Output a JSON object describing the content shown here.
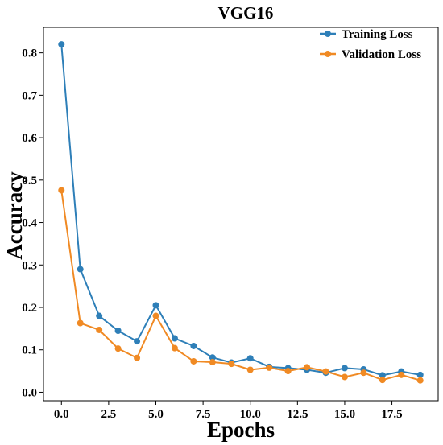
{
  "chart_data": {
    "type": "line",
    "title": "VGG16",
    "xlabel": "Epochs",
    "ylabel": "Accuracy",
    "xlim": [
      -0.95,
      19.95
    ],
    "ylim": [
      -0.02,
      0.86
    ],
    "xticks": [
      0,
      2.5,
      5,
      7.5,
      10,
      12.5,
      15,
      17.5
    ],
    "xtick_labels": [
      "0.0",
      "2.5",
      "5.0",
      "7.5",
      "10.0",
      "12.5",
      "15.0",
      "17.5"
    ],
    "yticks": [
      0,
      0.1,
      0.2,
      0.3,
      0.4,
      0.5,
      0.6,
      0.7,
      0.8
    ],
    "ytick_labels": [
      "0.0",
      "0.1",
      "0.2",
      "0.3",
      "0.4",
      "0.5",
      "0.6",
      "0.7",
      "0.8"
    ],
    "grid": false,
    "legend_position": "top-right",
    "x": [
      0,
      1,
      2,
      3,
      4,
      5,
      6,
      7,
      8,
      9,
      10,
      11,
      12,
      13,
      14,
      15,
      16,
      17,
      18,
      19
    ],
    "series": [
      {
        "name": "Training Loss",
        "color": "#2e7fb8",
        "values": [
          0.82,
          0.29,
          0.18,
          0.145,
          0.12,
          0.205,
          0.127,
          0.109,
          0.082,
          0.07,
          0.08,
          0.06,
          0.057,
          0.053,
          0.046,
          0.057,
          0.054,
          0.04,
          0.049,
          0.041
        ]
      },
      {
        "name": "Validation Loss",
        "color": "#f08a24",
        "values": [
          0.476,
          0.163,
          0.147,
          0.103,
          0.081,
          0.18,
          0.104,
          0.073,
          0.071,
          0.067,
          0.053,
          0.058,
          0.05,
          0.059,
          0.049,
          0.036,
          0.046,
          0.029,
          0.041,
          0.028
        ]
      }
    ]
  }
}
